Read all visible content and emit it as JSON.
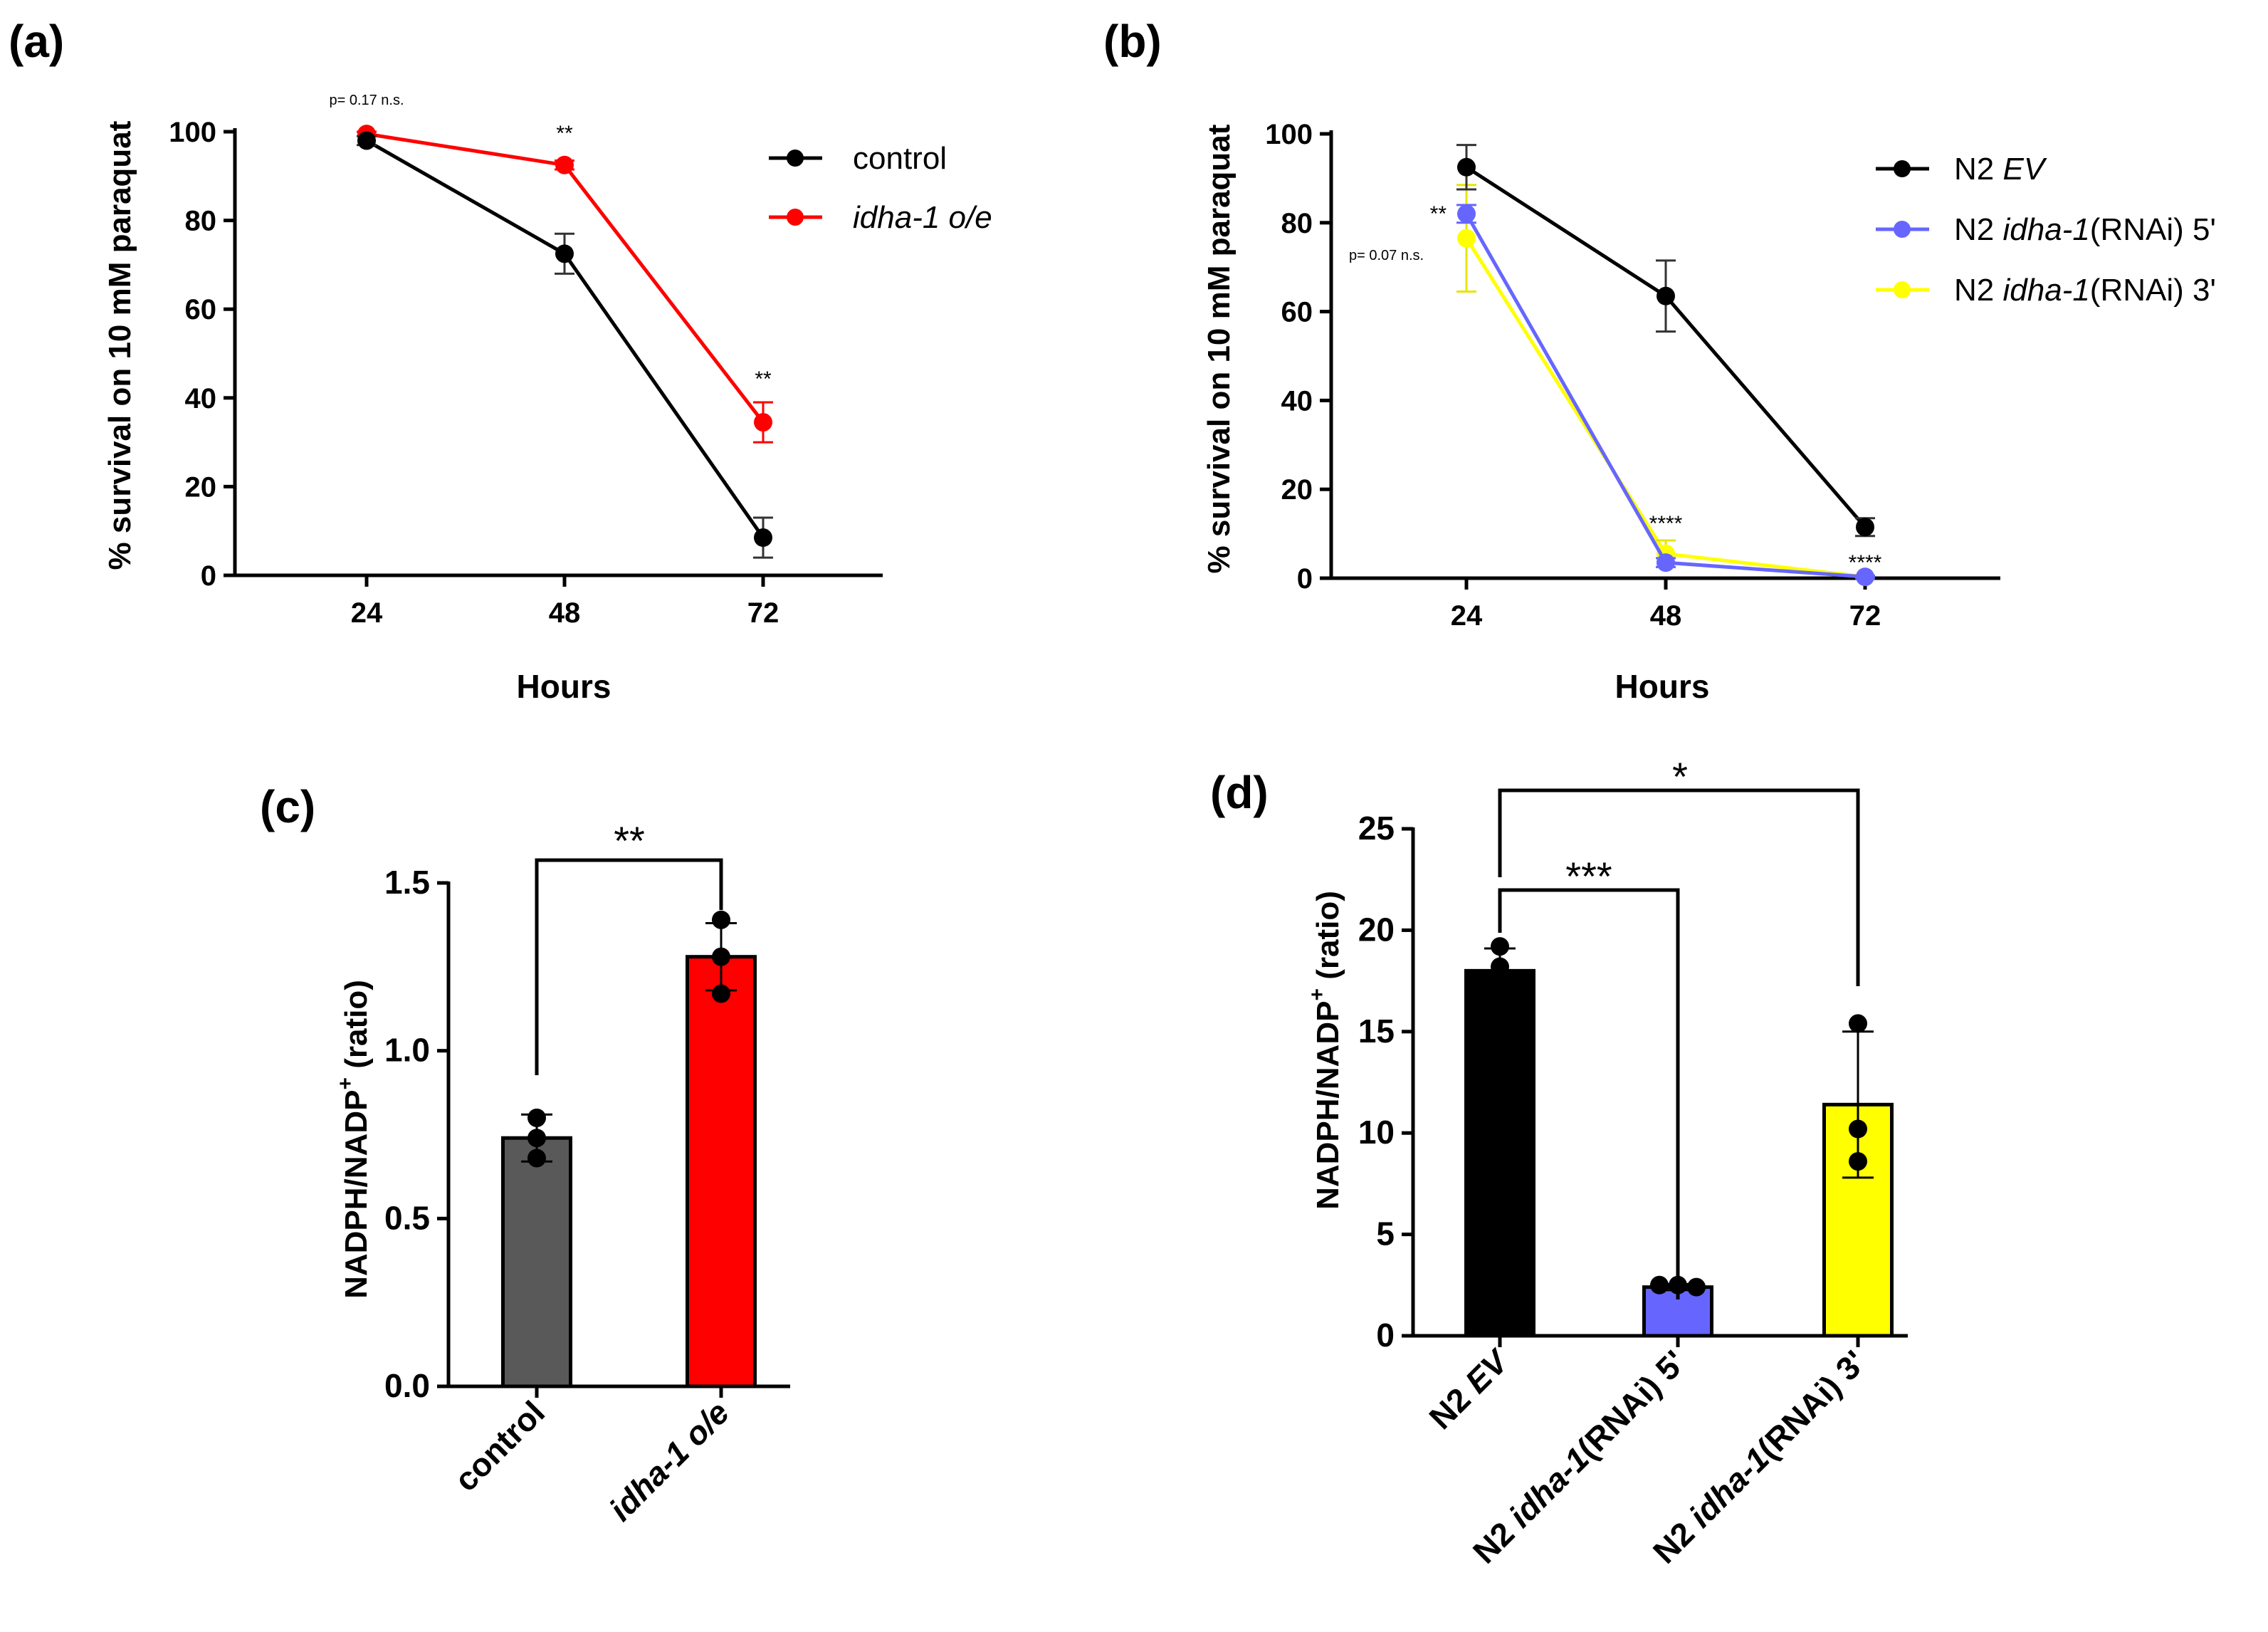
{
  "chart_data": [
    {
      "type": "line",
      "panel_label": "(a)",
      "xlabel": "Hours",
      "ylabel": "% survival on 10 mM paraquat",
      "categories": [
        "24",
        "48",
        "72"
      ],
      "ylim": [
        0,
        100
      ],
      "yticks": [
        "0",
        "20",
        "40",
        "60",
        "80",
        "100"
      ],
      "series": [
        {
          "name": "control",
          "name_italic": "",
          "color": "#000000",
          "values": [
            98,
            72.5,
            8.5
          ],
          "errors": [
            1,
            4.5,
            4.5
          ]
        },
        {
          "name": "",
          "name_italic": "idha-1 o/e",
          "color": "#ff0000",
          "values": [
            99.5,
            92.5,
            34.5
          ],
          "errors": [
            0.5,
            1,
            4.5
          ]
        }
      ],
      "annotations": [
        {
          "text": "p= 0.17 n.s.",
          "x_index": 0
        },
        {
          "text": "**",
          "x_index": 1
        },
        {
          "text": "**",
          "x_index": 2
        }
      ]
    },
    {
      "type": "line",
      "panel_label": "(b)",
      "xlabel": "Hours",
      "ylabel": "% survival on 10 mM paraquat",
      "categories": [
        "24",
        "48",
        "72"
      ],
      "ylim": [
        0,
        100
      ],
      "yticks": [
        "0",
        "20",
        "40",
        "60",
        "80",
        "100"
      ],
      "series": [
        {
          "name_prefix": "N2 ",
          "name_italic": "EV",
          "name_suffix": "",
          "color": "#000000",
          "values": [
            92.5,
            63.5,
            11.5
          ],
          "errors": [
            5,
            8,
            2
          ]
        },
        {
          "name_prefix": "N2 ",
          "name_italic": "idha-1",
          "name_suffix": "(RNAi) 5'",
          "color": "#6666ff",
          "values": [
            82,
            3.5,
            0.3
          ],
          "errors": [
            2,
            1,
            0.3
          ]
        },
        {
          "name_prefix": "N2 ",
          "name_italic": "idha-1",
          "name_suffix": "(RNAi) 3'",
          "color": "#ffff00",
          "values": [
            76.5,
            5.5,
            0.3
          ],
          "errors": [
            12,
            3,
            0.3
          ]
        }
      ],
      "annotations": [
        {
          "text": "**",
          "x_index": 0
        },
        {
          "text": "p= 0.07 n.s.",
          "x_index": 0
        },
        {
          "text": "****",
          "x_index": 1
        },
        {
          "text": "****",
          "x_index": 2
        }
      ]
    },
    {
      "type": "bar",
      "panel_label": "(c)",
      "xlabel": "",
      "ylabel_main": "NADPH/NADP",
      "ylabel_sup": "+",
      "ylabel_suffix": " (ratio)",
      "categories": [
        {
          "plain": "control",
          "italic": "",
          "suffix": ""
        },
        {
          "plain": "",
          "italic": "idha-1 o/e",
          "suffix": ""
        }
      ],
      "ylim": [
        0,
        1.5
      ],
      "yticks": [
        "0.0",
        "0.5",
        "1.0",
        "1.5"
      ],
      "bars": [
        {
          "value": 0.74,
          "error": 0.07,
          "color": "#595959",
          "points": [
            0.8,
            0.74,
            0.68
          ]
        },
        {
          "value": 1.28,
          "error": 0.1,
          "color": "#ff0000",
          "points": [
            1.39,
            1.28,
            1.17
          ]
        }
      ],
      "significance": [
        {
          "from": 0,
          "to": 1,
          "label": "**"
        }
      ]
    },
    {
      "type": "bar",
      "panel_label": "(d)",
      "xlabel": "",
      "ylabel_main": "NADPH/NADP",
      "ylabel_sup": "+",
      "ylabel_suffix": " (ratio)",
      "categories": [
        {
          "plain": "N2 ",
          "italic": "EV",
          "suffix": ""
        },
        {
          "plain": "N2 ",
          "italic": "idha-1",
          "suffix": "(RNAi) 5'"
        },
        {
          "plain": "N2 ",
          "italic": "idha-1",
          "suffix": "(RNAi) 3'"
        }
      ],
      "ylim": [
        0,
        25
      ],
      "yticks": [
        "0",
        "5",
        "10",
        "15",
        "20",
        "25"
      ],
      "bars": [
        {
          "value": 18,
          "error": 1.1,
          "color": "#000000",
          "points": [
            19.2,
            18.2,
            17.7
          ]
        },
        {
          "value": 2.4,
          "error": 0.15,
          "color": "#6666ff",
          "points": [
            2.5,
            2.5,
            2.4
          ]
        },
        {
          "value": 11.4,
          "error": 3.6,
          "color": "#ffff00",
          "points": [
            15.4,
            10.2,
            8.6
          ]
        }
      ],
      "significance": [
        {
          "from": 0,
          "to": 1,
          "label": "***"
        },
        {
          "from": 0,
          "to": 2,
          "label": "*"
        }
      ]
    }
  ]
}
